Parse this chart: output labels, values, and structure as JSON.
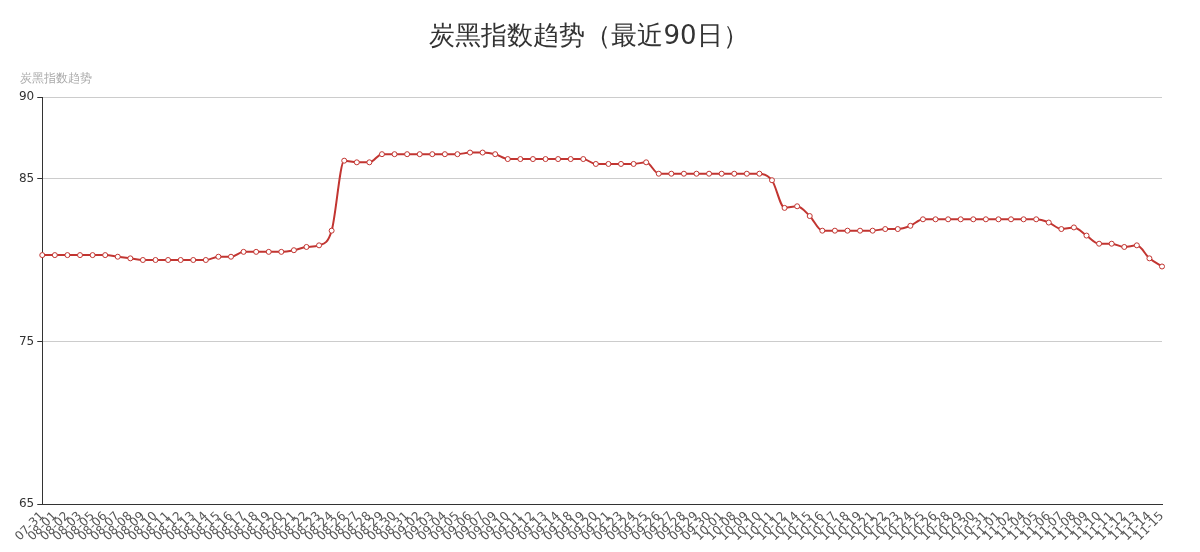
{
  "chart_data": {
    "type": "line",
    "title": "炭黑指数趋势（最近90日）",
    "ylabel": "炭黑指数趋势",
    "categories": [
      "07-31",
      "08-01",
      "08-02",
      "08-03",
      "08-05",
      "08-06",
      "08-07",
      "08-08",
      "08-09",
      "08-10",
      "08-11",
      "08-12",
      "08-13",
      "08-14",
      "08-15",
      "08-16",
      "08-17",
      "08-18",
      "08-19",
      "08-20",
      "08-21",
      "08-22",
      "08-23",
      "08-24",
      "08-26",
      "08-27",
      "08-28",
      "08-29",
      "08-30",
      "08-31",
      "09-02",
      "09-03",
      "09-04",
      "09-05",
      "09-06",
      "09-07",
      "09-09",
      "09-10",
      "09-11",
      "09-12",
      "09-13",
      "09-14",
      "09-18",
      "09-19",
      "09-20",
      "09-21",
      "09-23",
      "09-24",
      "09-25",
      "09-26",
      "09-27",
      "09-28",
      "09-29",
      "09-30",
      "10-01",
      "10-08",
      "10-09",
      "10-10",
      "10-11",
      "10-12",
      "10-14",
      "10-15",
      "10-16",
      "10-17",
      "10-18",
      "10-19",
      "10-21",
      "10-22",
      "10-23",
      "10-24",
      "10-25",
      "10-26",
      "10-28",
      "10-29",
      "10-30",
      "10-31",
      "11-01",
      "11-02",
      "11-04",
      "11-05",
      "11-06",
      "11-07",
      "11-08",
      "11-09",
      "11-10",
      "11-11",
      "11-12",
      "11-13",
      "11-14",
      "11-15"
    ],
    "series": [
      {
        "color": "#c23531",
        "values": [
          80.3,
          80.3,
          80.3,
          80.3,
          80.3,
          80.3,
          80.2,
          80.1,
          80.0,
          80.0,
          80.0,
          80.0,
          80.0,
          80.0,
          80.2,
          80.2,
          80.5,
          80.5,
          80.5,
          80.5,
          80.6,
          80.8,
          80.9,
          81.8,
          86.1,
          86.0,
          86.0,
          86.5,
          86.5,
          86.5,
          86.5,
          86.5,
          86.5,
          86.5,
          86.6,
          86.6,
          86.5,
          86.2,
          86.2,
          86.2,
          86.2,
          86.2,
          86.2,
          86.2,
          85.9,
          85.9,
          85.9,
          85.9,
          86.0,
          85.3,
          85.3,
          85.3,
          85.3,
          85.3,
          85.3,
          85.3,
          85.3,
          85.3,
          84.9,
          83.2,
          83.3,
          82.7,
          81.8,
          81.8,
          81.8,
          81.8,
          81.8,
          81.9,
          81.9,
          82.1,
          82.5,
          82.5,
          82.5,
          82.5,
          82.5,
          82.5,
          82.5,
          82.5,
          82.5,
          82.5,
          82.3,
          81.9,
          82.0,
          81.5,
          81.0,
          81.0,
          80.8,
          80.9,
          80.1,
          79.6
        ]
      }
    ],
    "ylim": [
      65,
      90
    ],
    "yticks": [
      65,
      75,
      85,
      90
    ],
    "grid": "y",
    "legend": false,
    "marker": "circle",
    "line_style": "solid"
  }
}
